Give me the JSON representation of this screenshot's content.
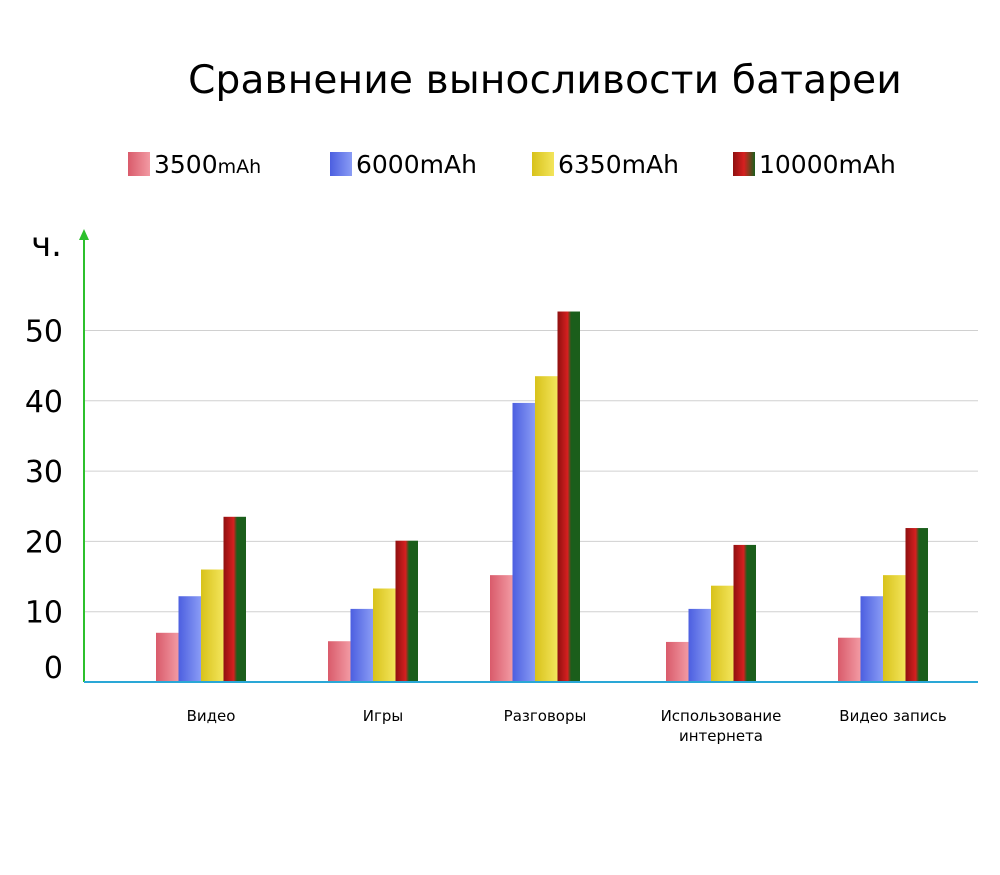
{
  "chart_data": {
    "type": "bar",
    "title": "Сравнение выносливости батареи",
    "ylabel": "ч.",
    "xlabel": "",
    "ylim": [
      0,
      55
    ],
    "yticks": [
      0,
      10,
      20,
      30,
      40,
      50
    ],
    "grid": true,
    "legend_position": "top",
    "categories": [
      [
        "Видео"
      ],
      [
        "Игры"
      ],
      [
        "Разговоры"
      ],
      [
        "Использование",
        "интернета"
      ],
      [
        "Видео запись"
      ]
    ],
    "series": [
      {
        "name": "3500",
        "unit": "mAh",
        "values": [
          7,
          5.8,
          15.2,
          5.7,
          6.3
        ]
      },
      {
        "name": "6000mAh",
        "values": [
          12.2,
          10.4,
          39.7,
          10.4,
          12.2
        ]
      },
      {
        "name": "6350mAh",
        "values": [
          16,
          13.3,
          43.5,
          13.7,
          15.2
        ]
      },
      {
        "name": "10000mAh",
        "values": [
          23.5,
          20.1,
          52.7,
          19.5,
          21.9
        ]
      }
    ],
    "colors": {
      "series_dark": [
        "#d95b6b",
        "#4c5fe0",
        "#d8c21a",
        "#8f1010"
      ],
      "series_light": [
        "#f29aa3",
        "#8a9cf5",
        "#f3e55c",
        "#d62020"
      ],
      "series_accent": [
        null,
        null,
        null,
        "#1b5e1b"
      ],
      "grid": "#d0d0d0",
      "x_axis": "#2aa7d6",
      "y_axis": "#2cc02c"
    }
  }
}
